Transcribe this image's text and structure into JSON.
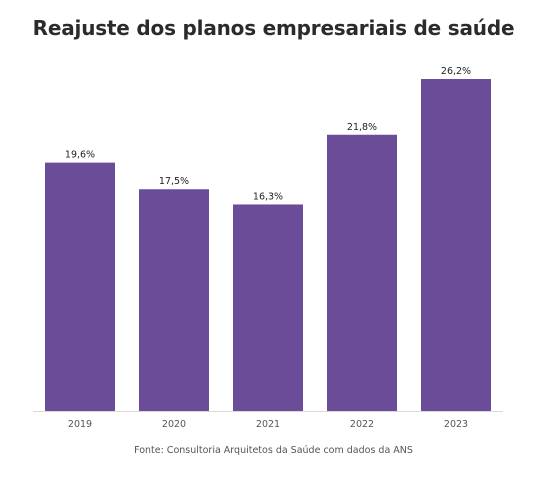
{
  "chart_data": {
    "type": "bar",
    "title": "Reajuste dos planos empresariais de saúde",
    "categories": [
      "2019",
      "2020",
      "2021",
      "2022",
      "2023"
    ],
    "values": [
      19.6,
      17.5,
      16.3,
      21.8,
      26.2
    ],
    "value_labels": [
      "19,6%",
      "17,5%",
      "16,3%",
      "21,8%",
      "26,2%"
    ],
    "ylim": [
      0,
      26.2
    ],
    "grid": false,
    "bar_color": "#6a4c98",
    "source": "Fonte: Consultoria Arquitetos da Saúde com dados da ANS"
  }
}
